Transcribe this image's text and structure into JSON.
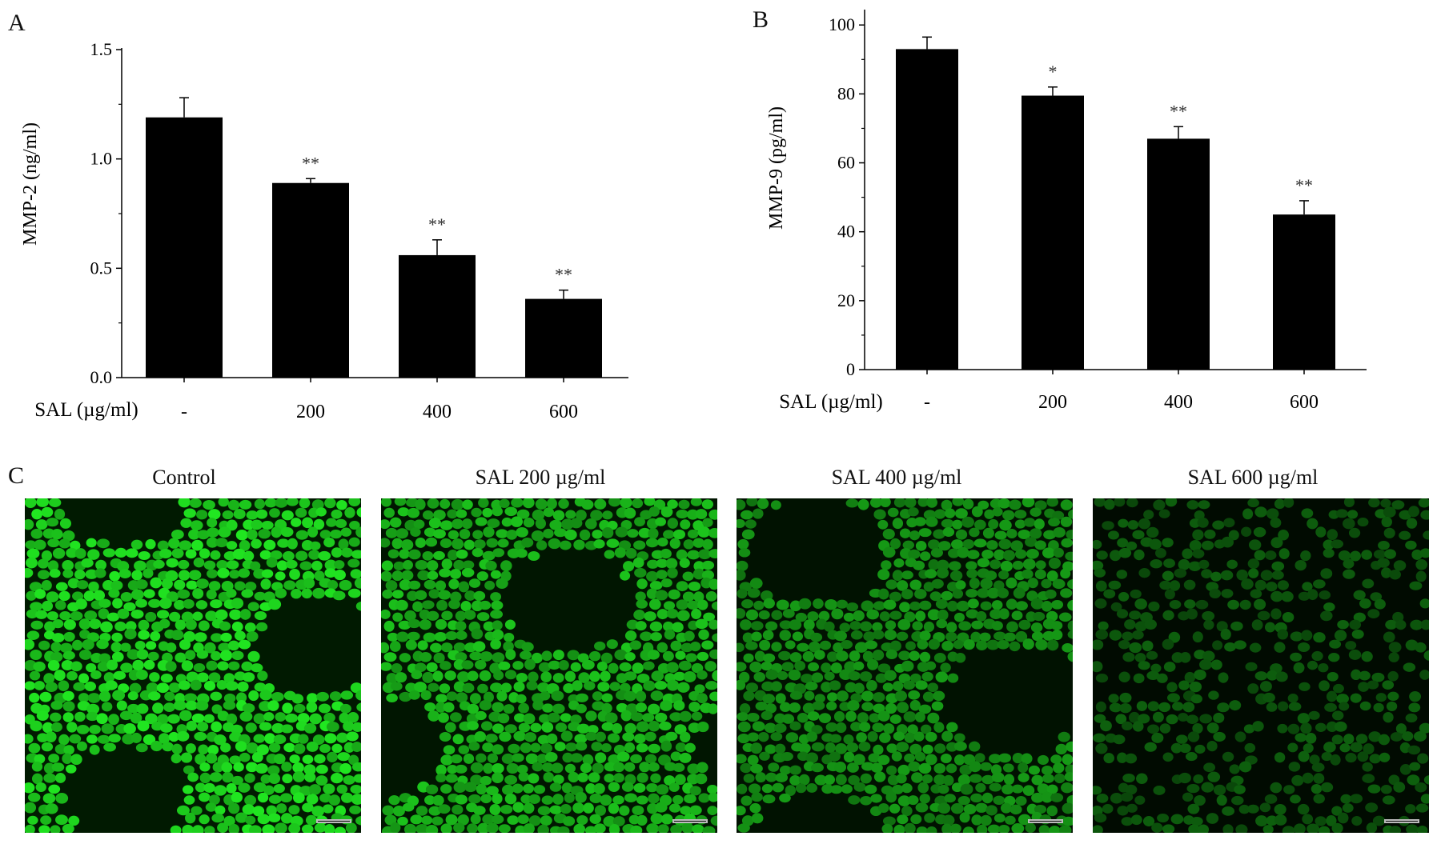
{
  "panels": {
    "a": "A",
    "b": "B",
    "c": "C"
  },
  "chart_data": [
    {
      "type": "bar",
      "panel": "A",
      "ylabel": "MMP-2  (ng/ml)",
      "xlabel": "SAL  (µg/ml)",
      "categories": [
        "-",
        "200",
        "400",
        "600"
      ],
      "values": [
        1.19,
        0.89,
        0.56,
        0.36
      ],
      "errors": [
        0.09,
        0.02,
        0.07,
        0.04
      ],
      "significance": [
        "",
        "**",
        "**",
        "**"
      ],
      "ylim": [
        0,
        1.5
      ],
      "yticks": [
        "0.0",
        "0.5",
        "1.0",
        "1.5"
      ],
      "grid": false,
      "bar_color": "#000000"
    },
    {
      "type": "bar",
      "panel": "B",
      "ylabel": "MMP-9  (pg/ml)",
      "xlabel": "SAL  (µg/ml)",
      "categories": [
        "-",
        "200",
        "400",
        "600"
      ],
      "values": [
        93,
        79.5,
        67,
        45
      ],
      "errors": [
        3.5,
        2.5,
        3.5,
        4
      ],
      "significance": [
        "",
        "*",
        "**",
        "**"
      ],
      "ylim": [
        0,
        104
      ],
      "yticks": [
        "0",
        "20",
        "40",
        "60",
        "80",
        "100"
      ],
      "grid": false,
      "bar_color": "#000000"
    }
  ],
  "images": [
    {
      "title": "Control",
      "brightness": 1.0
    },
    {
      "title": "SAL 200 µg/ml",
      "brightness": 0.85
    },
    {
      "title": "SAL 400 µg/ml",
      "brightness": 0.68
    },
    {
      "title": "SAL 600 µg/ml",
      "brightness": 0.42
    }
  ],
  "colors": {
    "fluorescence": "#1fdc1f"
  }
}
